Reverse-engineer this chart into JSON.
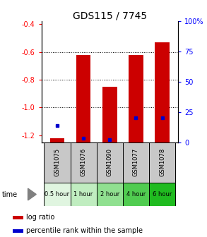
{
  "title": "GDS115 / 7745",
  "samples": [
    "GSM1075",
    "GSM1076",
    "GSM1090",
    "GSM1077",
    "GSM1078"
  ],
  "time_labels": [
    "0.5 hour",
    "1 hour",
    "2 hour",
    "4 hour",
    "6 hour"
  ],
  "time_colors": [
    "#e0f5e0",
    "#c0edc0",
    "#90e090",
    "#50cc50",
    "#20bb20"
  ],
  "log_ratios": [
    -1.22,
    -0.62,
    -0.85,
    -0.62,
    -0.53
  ],
  "percentile_ranks": [
    14,
    3,
    2,
    20,
    20
  ],
  "ylim_left": [
    -1.25,
    -0.38
  ],
  "ylim_right": [
    0,
    100
  ],
  "bar_color": "#cc0000",
  "dot_color": "#0000cc",
  "bar_bottom": -1.25,
  "right_ticks": [
    0,
    25,
    50,
    75,
    100
  ],
  "right_tick_labels": [
    "0",
    "25",
    "50",
    "75",
    "100%"
  ],
  "left_ticks": [
    -1.2,
    -1.0,
    -0.8,
    -0.6,
    -0.4
  ],
  "grid_values": [
    -1.0,
    -0.8,
    -0.6
  ],
  "label_area_color": "#c8c8c8",
  "title_fontsize": 10,
  "tick_fontsize": 7,
  "legend_fontsize": 7,
  "sample_fontsize": 6,
  "time_fontsize": 6
}
